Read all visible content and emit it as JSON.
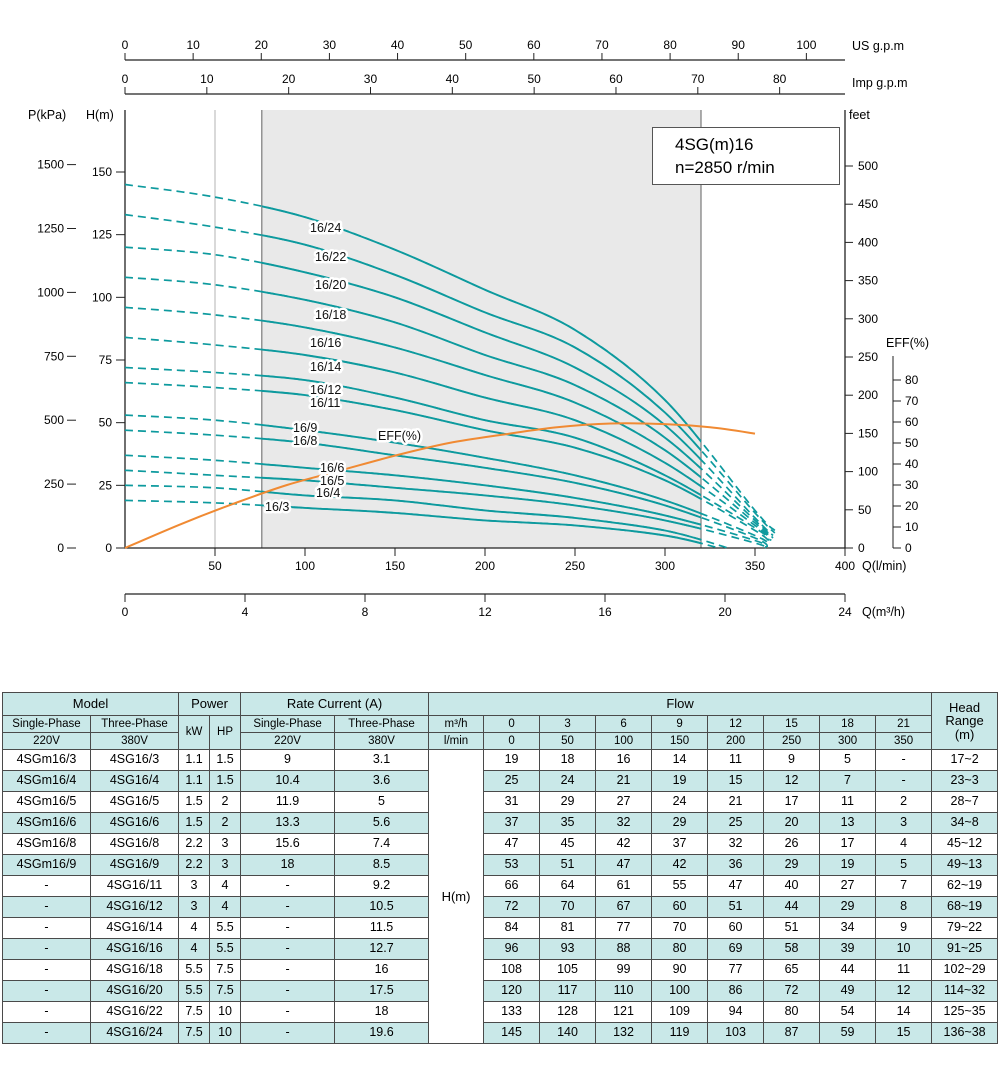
{
  "chart_data": {
    "type": "line",
    "title": "4SG(m)16",
    "subtitle": "n=2850 r/min",
    "x_unit": "l/min",
    "recommended_range_lmin": [
      76,
      320
    ],
    "axes": {
      "us_gpm": {
        "label": "US g.p.m",
        "ticks": [
          0,
          10,
          20,
          30,
          40,
          50,
          60,
          70,
          80,
          90,
          100
        ]
      },
      "imp_gpm": {
        "label": "Imp g.p.m",
        "ticks": [
          0,
          10,
          20,
          30,
          40,
          50,
          60,
          70,
          80
        ]
      },
      "p_kpa": {
        "label": "P(kPa)",
        "ticks": [
          0,
          250,
          500,
          750,
          1000,
          1250,
          1500
        ]
      },
      "h_m": {
        "label": "H(m)",
        "ticks": [
          0,
          25,
          50,
          75,
          100,
          125,
          150
        ]
      },
      "feet": {
        "label": "feet",
        "ticks": [
          0,
          50,
          100,
          150,
          200,
          250,
          300,
          350,
          400,
          450,
          500
        ]
      },
      "eff": {
        "label": "EFF(%)",
        "ticks": [
          0,
          10,
          20,
          30,
          40,
          50,
          60,
          70,
          80
        ]
      },
      "q_lmin": {
        "label": "Q(l/min)",
        "ticks": [
          50,
          100,
          150,
          200,
          250,
          300,
          350,
          400
        ]
      },
      "q_m3h": {
        "label": "Q(m³/h)",
        "ticks": [
          0,
          4,
          8,
          12,
          16,
          20,
          24
        ]
      }
    },
    "series": [
      {
        "name": "16/3",
        "points": [
          [
            0,
            19
          ],
          [
            50,
            18
          ],
          [
            100,
            16
          ],
          [
            150,
            14
          ],
          [
            200,
            11
          ],
          [
            250,
            9
          ],
          [
            300,
            5
          ],
          [
            330,
            0
          ]
        ]
      },
      {
        "name": "16/4",
        "points": [
          [
            0,
            25
          ],
          [
            50,
            24
          ],
          [
            100,
            21
          ],
          [
            150,
            19
          ],
          [
            200,
            15
          ],
          [
            250,
            12
          ],
          [
            300,
            7
          ],
          [
            335,
            0
          ]
        ]
      },
      {
        "name": "16/5",
        "points": [
          [
            0,
            31
          ],
          [
            50,
            29
          ],
          [
            100,
            27
          ],
          [
            150,
            24
          ],
          [
            200,
            21
          ],
          [
            250,
            17
          ],
          [
            300,
            11
          ],
          [
            350,
            2
          ],
          [
            355,
            0
          ]
        ]
      },
      {
        "name": "16/6",
        "points": [
          [
            0,
            37
          ],
          [
            50,
            35
          ],
          [
            100,
            32
          ],
          [
            150,
            29
          ],
          [
            200,
            25
          ],
          [
            250,
            20
          ],
          [
            300,
            13
          ],
          [
            350,
            3
          ],
          [
            356,
            0
          ]
        ]
      },
      {
        "name": "16/8",
        "points": [
          [
            0,
            47
          ],
          [
            50,
            45
          ],
          [
            100,
            42
          ],
          [
            150,
            37
          ],
          [
            200,
            32
          ],
          [
            250,
            26
          ],
          [
            300,
            17
          ],
          [
            350,
            4
          ],
          [
            357,
            0
          ]
        ]
      },
      {
        "name": "16/9",
        "points": [
          [
            0,
            53
          ],
          [
            50,
            51
          ],
          [
            100,
            47
          ],
          [
            150,
            42
          ],
          [
            200,
            36
          ],
          [
            250,
            29
          ],
          [
            300,
            19
          ],
          [
            350,
            5
          ],
          [
            358,
            1
          ]
        ]
      },
      {
        "name": "16/11",
        "points": [
          [
            0,
            66
          ],
          [
            50,
            64
          ],
          [
            100,
            61
          ],
          [
            150,
            55
          ],
          [
            200,
            47
          ],
          [
            250,
            40
          ],
          [
            300,
            27
          ],
          [
            350,
            7
          ],
          [
            358,
            2
          ]
        ]
      },
      {
        "name": "16/12",
        "points": [
          [
            0,
            72
          ],
          [
            50,
            70
          ],
          [
            100,
            67
          ],
          [
            150,
            60
          ],
          [
            200,
            51
          ],
          [
            250,
            44
          ],
          [
            300,
            29
          ],
          [
            350,
            8
          ],
          [
            358,
            3
          ]
        ]
      },
      {
        "name": "16/14",
        "points": [
          [
            0,
            84
          ],
          [
            50,
            81
          ],
          [
            100,
            77
          ],
          [
            150,
            70
          ],
          [
            200,
            60
          ],
          [
            250,
            51
          ],
          [
            300,
            34
          ],
          [
            350,
            9
          ],
          [
            359,
            3
          ]
        ]
      },
      {
        "name": "16/16",
        "points": [
          [
            0,
            96
          ],
          [
            50,
            93
          ],
          [
            100,
            88
          ],
          [
            150,
            80
          ],
          [
            200,
            69
          ],
          [
            250,
            58
          ],
          [
            300,
            39
          ],
          [
            350,
            10
          ],
          [
            359,
            4
          ]
        ]
      },
      {
        "name": "16/18",
        "points": [
          [
            0,
            108
          ],
          [
            50,
            105
          ],
          [
            100,
            99
          ],
          [
            150,
            90
          ],
          [
            200,
            77
          ],
          [
            250,
            65
          ],
          [
            300,
            44
          ],
          [
            350,
            11
          ],
          [
            360,
            4
          ]
        ]
      },
      {
        "name": "16/20",
        "points": [
          [
            0,
            120
          ],
          [
            50,
            117
          ],
          [
            100,
            110
          ],
          [
            150,
            100
          ],
          [
            200,
            86
          ],
          [
            250,
            72
          ],
          [
            300,
            49
          ],
          [
            350,
            12
          ],
          [
            360,
            5
          ]
        ]
      },
      {
        "name": "16/22",
        "points": [
          [
            0,
            133
          ],
          [
            50,
            128
          ],
          [
            100,
            121
          ],
          [
            150,
            109
          ],
          [
            200,
            94
          ],
          [
            250,
            80
          ],
          [
            300,
            54
          ],
          [
            350,
            14
          ],
          [
            361,
            6
          ]
        ]
      },
      {
        "name": "16/24",
        "points": [
          [
            0,
            145
          ],
          [
            50,
            140
          ],
          [
            100,
            132
          ],
          [
            150,
            119
          ],
          [
            200,
            103
          ],
          [
            250,
            87
          ],
          [
            300,
            59
          ],
          [
            350,
            15
          ],
          [
            361,
            7
          ]
        ]
      }
    ],
    "efficiency_series": {
      "name": "EFF(%)",
      "points": [
        [
          0,
          0
        ],
        [
          30,
          11
        ],
        [
          60,
          21
        ],
        [
          90,
          30
        ],
        [
          120,
          37
        ],
        [
          150,
          44
        ],
        [
          180,
          50
        ],
        [
          210,
          54
        ],
        [
          240,
          57.5
        ],
        [
          270,
          59.3
        ],
        [
          300,
          59
        ],
        [
          325,
          57.5
        ],
        [
          350,
          54.5
        ]
      ]
    },
    "curve_labels": [
      {
        "text": "16/24",
        "x": 310,
        "y": 232
      },
      {
        "text": "16/22",
        "x": 315,
        "y": 261
      },
      {
        "text": "16/20",
        "x": 315,
        "y": 289
      },
      {
        "text": "16/18",
        "x": 315,
        "y": 319
      },
      {
        "text": "16/16",
        "x": 310,
        "y": 347
      },
      {
        "text": "16/14",
        "x": 310,
        "y": 371
      },
      {
        "text": "16/12",
        "x": 310,
        "y": 394
      },
      {
        "text": "16/11",
        "x": 310,
        "y": 407
      },
      {
        "text": "16/9",
        "x": 293,
        "y": 432
      },
      {
        "text": "16/8",
        "x": 293,
        "y": 445
      },
      {
        "text": "16/6",
        "x": 320,
        "y": 472
      },
      {
        "text": "16/5",
        "x": 320,
        "y": 485
      },
      {
        "text": "16/4",
        "x": 316,
        "y": 497
      },
      {
        "text": "16/3",
        "x": 265,
        "y": 511
      },
      {
        "text": "EFF(%)",
        "x": 378,
        "y": 440
      }
    ],
    "colors": {
      "curve": "#0d9a9e",
      "efficiency": "#f08a33",
      "band": "#e9e9e9"
    }
  },
  "table": {
    "header": {
      "model": "Model",
      "power": "Power",
      "rate_current": "Rate Current (A)",
      "flow": "Flow",
      "head_range_label": [
        "Head",
        "Range",
        "(m)"
      ],
      "single_phase": "Single-Phase",
      "three_phase": "Three-Phase",
      "v220": "220V",
      "v380": "380V",
      "kw": "kW",
      "hp": "HP",
      "m3h": "m³/h",
      "lmin": "l/min",
      "hm": "H(m)",
      "flow_m3h": [
        "0",
        "3",
        "6",
        "9",
        "12",
        "15",
        "18",
        "21"
      ],
      "flow_lmin": [
        "0",
        "50",
        "100",
        "150",
        "200",
        "250",
        "300",
        "350"
      ]
    },
    "rows": [
      {
        "sp": "4SGm16/3",
        "tp": "4SG16/3",
        "kw": "1.1",
        "hp": "1.5",
        "sp_a": "9",
        "tp_a": "3.1",
        "flow": [
          "19",
          "18",
          "16",
          "14",
          "11",
          "9",
          "5",
          "-"
        ],
        "head_range": "17~2"
      },
      {
        "sp": "4SGm16/4",
        "tp": "4SG16/4",
        "kw": "1.1",
        "hp": "1.5",
        "sp_a": "10.4",
        "tp_a": "3.6",
        "flow": [
          "25",
          "24",
          "21",
          "19",
          "15",
          "12",
          "7",
          "-"
        ],
        "head_range": "23~3"
      },
      {
        "sp": "4SGm16/5",
        "tp": "4SG16/5",
        "kw": "1.5",
        "hp": "2",
        "sp_a": "11.9",
        "tp_a": "5",
        "flow": [
          "31",
          "29",
          "27",
          "24",
          "21",
          "17",
          "11",
          "2"
        ],
        "head_range": "28~7"
      },
      {
        "sp": "4SGm16/6",
        "tp": "4SG16/6",
        "kw": "1.5",
        "hp": "2",
        "sp_a": "13.3",
        "tp_a": "5.6",
        "flow": [
          "37",
          "35",
          "32",
          "29",
          "25",
          "20",
          "13",
          "3"
        ],
        "head_range": "34~8"
      },
      {
        "sp": "4SGm16/8",
        "tp": "4SG16/8",
        "kw": "2.2",
        "hp": "3",
        "sp_a": "15.6",
        "tp_a": "7.4",
        "flow": [
          "47",
          "45",
          "42",
          "37",
          "32",
          "26",
          "17",
          "4"
        ],
        "head_range": "45~12"
      },
      {
        "sp": "4SGm16/9",
        "tp": "4SG16/9",
        "kw": "2.2",
        "hp": "3",
        "sp_a": "18",
        "tp_a": "8.5",
        "flow": [
          "53",
          "51",
          "47",
          "42",
          "36",
          "29",
          "19",
          "5"
        ],
        "head_range": "49~13"
      },
      {
        "sp": "-",
        "tp": "4SG16/11",
        "kw": "3",
        "hp": "4",
        "sp_a": "-",
        "tp_a": "9.2",
        "flow": [
          "66",
          "64",
          "61",
          "55",
          "47",
          "40",
          "27",
          "7"
        ],
        "head_range": "62~19"
      },
      {
        "sp": "-",
        "tp": "4SG16/12",
        "kw": "3",
        "hp": "4",
        "sp_a": "-",
        "tp_a": "10.5",
        "flow": [
          "72",
          "70",
          "67",
          "60",
          "51",
          "44",
          "29",
          "8"
        ],
        "head_range": "68~19"
      },
      {
        "sp": "-",
        "tp": "4SG16/14",
        "kw": "4",
        "hp": "5.5",
        "sp_a": "-",
        "tp_a": "11.5",
        "flow": [
          "84",
          "81",
          "77",
          "70",
          "60",
          "51",
          "34",
          "9"
        ],
        "head_range": "79~22"
      },
      {
        "sp": "-",
        "tp": "4SG16/16",
        "kw": "4",
        "hp": "5.5",
        "sp_a": "-",
        "tp_a": "12.7",
        "flow": [
          "96",
          "93",
          "88",
          "80",
          "69",
          "58",
          "39",
          "10"
        ],
        "head_range": "91~25"
      },
      {
        "sp": "-",
        "tp": "4SG16/18",
        "kw": "5.5",
        "hp": "7.5",
        "sp_a": "-",
        "tp_a": "16",
        "flow": [
          "108",
          "105",
          "99",
          "90",
          "77",
          "65",
          "44",
          "11"
        ],
        "head_range": "102~29"
      },
      {
        "sp": "-",
        "tp": "4SG16/20",
        "kw": "5.5",
        "hp": "7.5",
        "sp_a": "-",
        "tp_a": "17.5",
        "flow": [
          "120",
          "117",
          "110",
          "100",
          "86",
          "72",
          "49",
          "12"
        ],
        "head_range": "114~32"
      },
      {
        "sp": "-",
        "tp": "4SG16/22",
        "kw": "7.5",
        "hp": "10",
        "sp_a": "-",
        "tp_a": "18",
        "flow": [
          "133",
          "128",
          "121",
          "109",
          "94",
          "80",
          "54",
          "14"
        ],
        "head_range": "125~35"
      },
      {
        "sp": "-",
        "tp": "4SG16/24",
        "kw": "7.5",
        "hp": "10",
        "sp_a": "-",
        "tp_a": "19.6",
        "flow": [
          "145",
          "140",
          "132",
          "119",
          "103",
          "87",
          "59",
          "15"
        ],
        "head_range": "136~38"
      }
    ]
  }
}
